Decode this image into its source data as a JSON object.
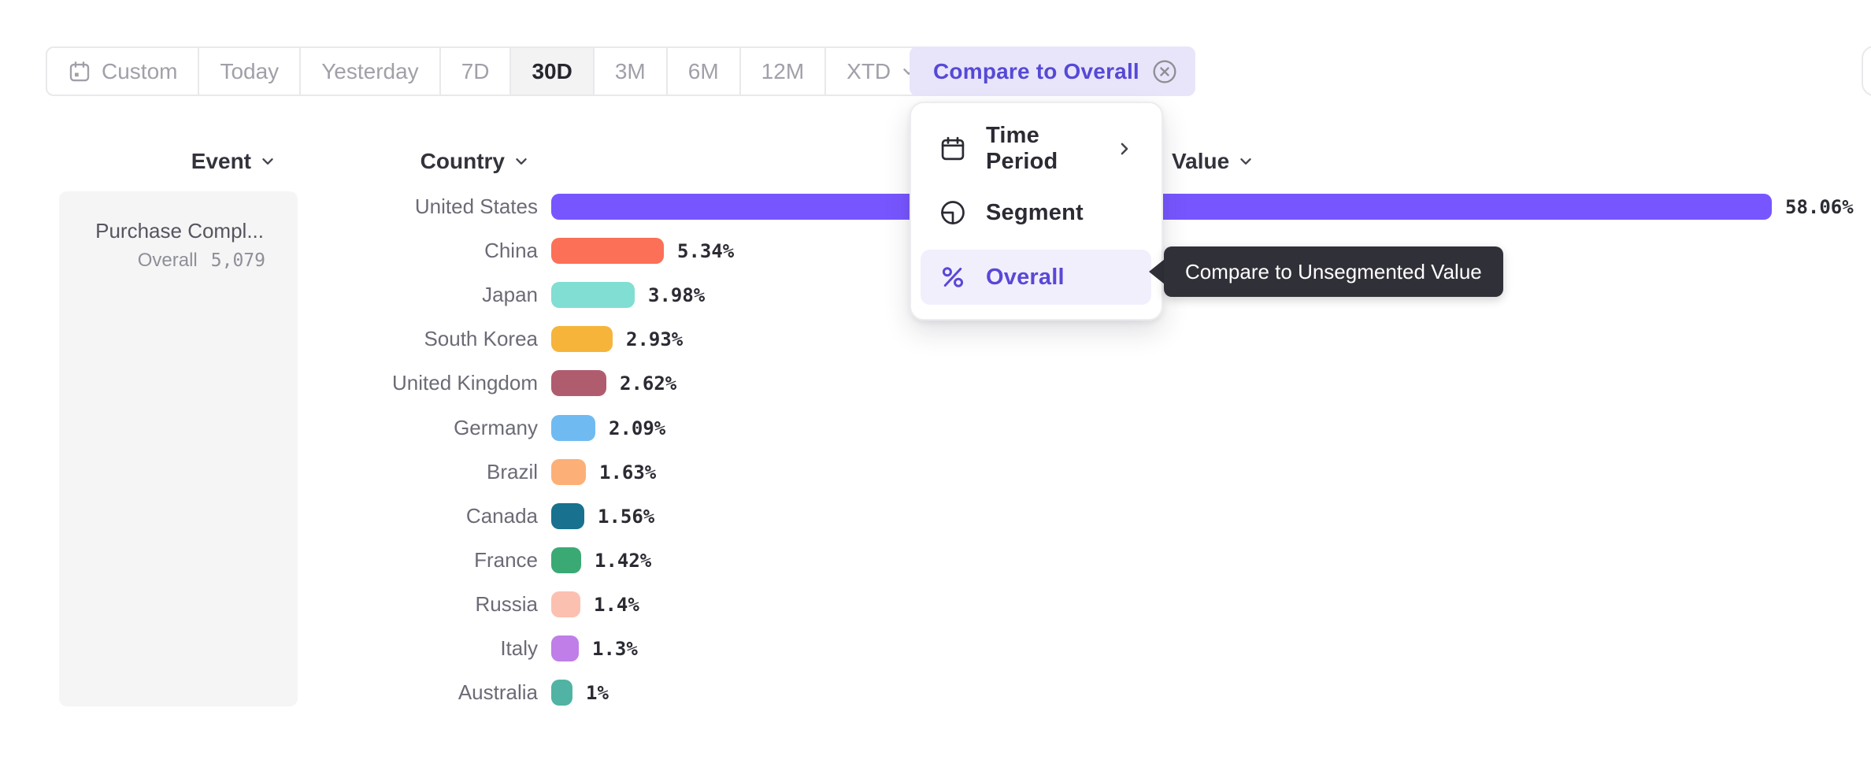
{
  "colors": {
    "accent_purple": "#5649d6",
    "chip_bg": "#e8e5fa",
    "menu_active_bg": "#f2effc",
    "tooltip_bg": "#303038",
    "toolbar_selected_bg": "#f3f3f4",
    "event_card_bg": "#f5f5f6"
  },
  "toolbar": {
    "buttons": [
      {
        "label": "Custom"
      },
      {
        "label": "Today"
      },
      {
        "label": "Yesterday"
      },
      {
        "label": "7D"
      },
      {
        "label": "30D"
      },
      {
        "label": "3M"
      },
      {
        "label": "6M"
      },
      {
        "label": "12M"
      },
      {
        "label": "XTD"
      }
    ],
    "selected": "30D",
    "compare_chip_label": "Compare to Overall"
  },
  "menu": {
    "items": [
      {
        "label": "Time Period",
        "icon": "calendar-icon",
        "has_submenu": true,
        "active": false
      },
      {
        "label": "Segment",
        "icon": "segment-icon",
        "has_submenu": false,
        "active": false
      },
      {
        "label": "Overall",
        "icon": "percent-icon",
        "has_submenu": false,
        "active": true
      }
    ],
    "tooltip": "Compare to Unsegmented Value"
  },
  "columns": {
    "event": "Event",
    "country": "Country",
    "value": "Value"
  },
  "event_cell": {
    "name": "Purchase Compl...",
    "overall_label": "Overall",
    "overall_value": "5,079"
  },
  "chart_data": {
    "type": "bar",
    "orientation": "horizontal",
    "categories": [
      "United States",
      "China",
      "Japan",
      "South Korea",
      "United Kingdom",
      "Germany",
      "Brazil",
      "Canada",
      "France",
      "Russia",
      "Italy",
      "Australia"
    ],
    "values": [
      58.06,
      5.34,
      3.98,
      2.93,
      2.62,
      2.09,
      1.63,
      1.56,
      1.42,
      1.4,
      1.3,
      1.0
    ],
    "labels": [
      "58.06%",
      "5.34%",
      "3.98%",
      "2.93%",
      "2.62%",
      "2.09%",
      "1.63%",
      "1.56%",
      "1.42%",
      "1.4%",
      "1.3%",
      "1%"
    ],
    "colors": [
      "#7856ff",
      "#fb7056",
      "#80ded2",
      "#f6b43b",
      "#b05c6f",
      "#70baf2",
      "#fcb077",
      "#17718f",
      "#3ba974",
      "#fcc0b1",
      "#c07ee8",
      "#50b3a3"
    ],
    "xlim": [
      0,
      60
    ],
    "value_suffix": "%",
    "grid": false,
    "legend": false
  }
}
